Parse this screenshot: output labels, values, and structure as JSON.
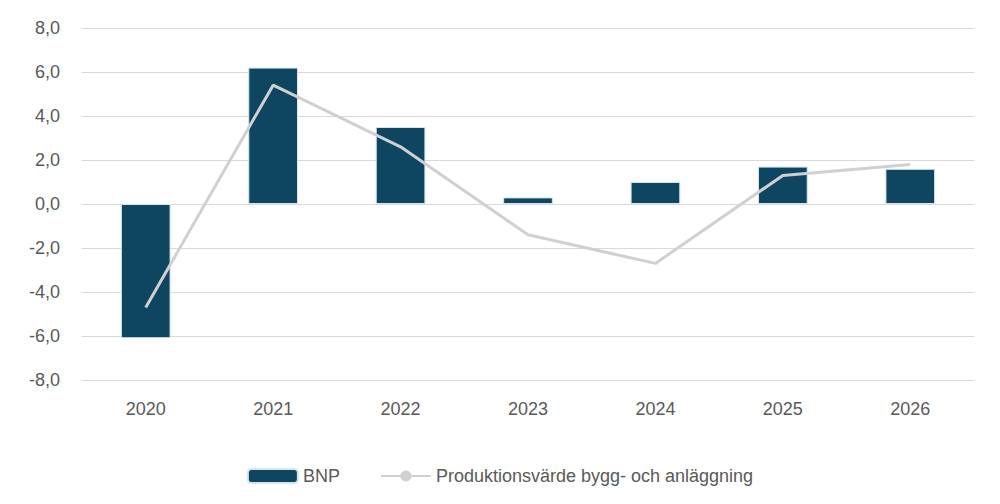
{
  "chart_data": {
    "type": "bar",
    "categories": [
      "2020",
      "2021",
      "2022",
      "2023",
      "2024",
      "2025",
      "2026"
    ],
    "series": [
      {
        "name": "BNP",
        "type": "bar",
        "color": "#0e4561",
        "values": [
          -6.1,
          6.2,
          3.5,
          0.3,
          1.0,
          1.7,
          1.6
        ]
      },
      {
        "name": "Produktionsvärde bygg- och anläggning",
        "type": "line",
        "color": "#d0d0d0",
        "values": [
          -4.7,
          5.4,
          2.6,
          -1.4,
          -2.7,
          1.3,
          1.8
        ]
      }
    ],
    "ylim": [
      -8,
      8
    ],
    "yticks": [
      {
        "value": -8,
        "label": "-8,0"
      },
      {
        "value": -6,
        "label": "-6,0"
      },
      {
        "value": -4,
        "label": "-4,0"
      },
      {
        "value": -2,
        "label": "-2,0"
      },
      {
        "value": 0,
        "label": "0,0"
      },
      {
        "value": 2,
        "label": "2,0"
      },
      {
        "value": 4,
        "label": "4,0"
      },
      {
        "value": 6,
        "label": "6,0"
      },
      {
        "value": 8,
        "label": "8,0"
      }
    ],
    "grid": true,
    "legend": "bottom"
  }
}
